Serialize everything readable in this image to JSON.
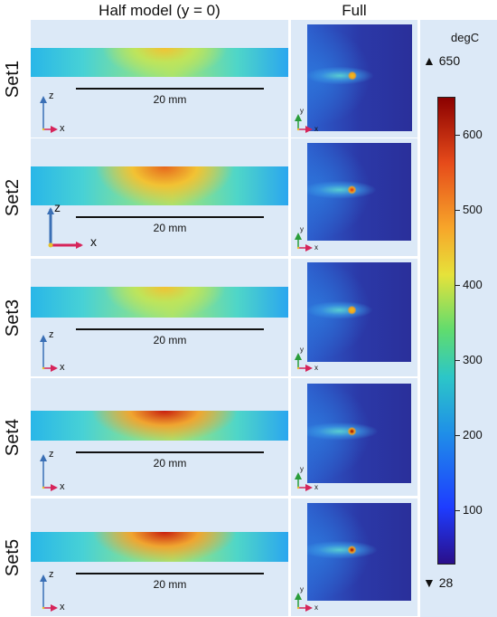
{
  "headers": {
    "half": "Half model (y = 0)",
    "full": "Full"
  },
  "sets": [
    {
      "label": "Set1",
      "intensity": 0.55
    },
    {
      "label": "Set2",
      "intensity": 0.8
    },
    {
      "label": "Set3",
      "intensity": 0.5
    },
    {
      "label": "Set4",
      "intensity": 0.95
    },
    {
      "label": "Set5",
      "intensity": 0.9
    }
  ],
  "scale_bar": "20 mm",
  "axis_labels": {
    "z": "z",
    "x": "x",
    "y": "y"
  },
  "colorbar": {
    "unit": "degC",
    "max_label": "650",
    "min_label": "28",
    "max_marker": "▲",
    "min_marker": "▼",
    "ticks": [
      "600",
      "500",
      "400",
      "300",
      "200",
      "100"
    ]
  },
  "colors": {
    "background": "#dce9f7",
    "cold": "#2b39a8"
  }
}
